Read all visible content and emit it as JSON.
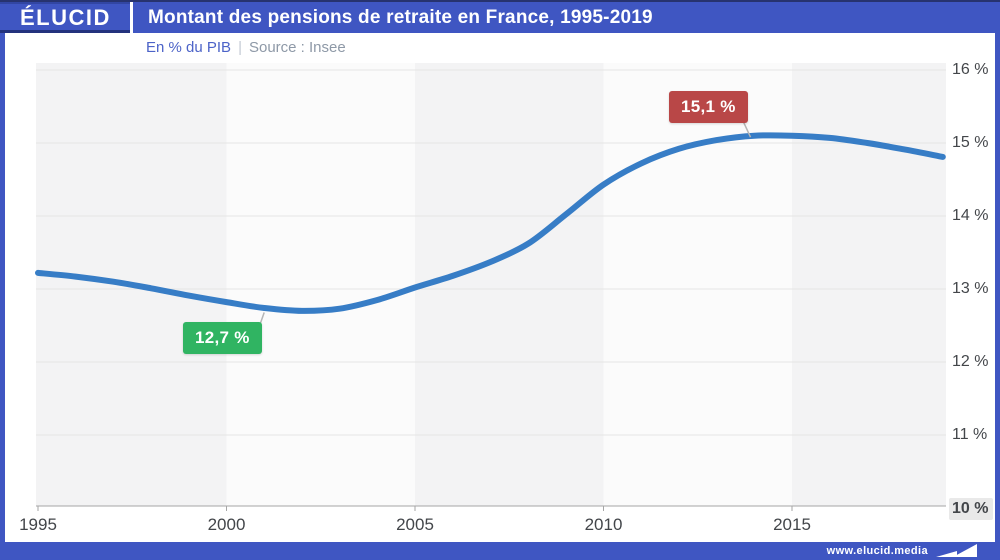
{
  "header": {
    "logo": "ÉLUCID",
    "title": "Montant des pensions de retraite en France, 1995-2019"
  },
  "subtitle": {
    "metric": "En % du PIB",
    "separator": "|",
    "source": "Source : Insee"
  },
  "footer": {
    "url": "www.elucid.media"
  },
  "colors": {
    "brand_blue": "#3f56c2",
    "line_blue": "#377dc6",
    "min_green": "#30b462",
    "max_red": "#b94747",
    "band_gray": "#f3f3f4",
    "band_light": "#fbfbfb",
    "grid": "#e5e5e5",
    "axis": "#a6a6a6",
    "connector": "#b5b5b5"
  },
  "chart_data": {
    "type": "line",
    "title": "Montant des pensions de retraite en France, 1995-2019",
    "ylabel": "En % du PIB",
    "source": "Insee",
    "x": [
      1995,
      1996,
      1997,
      1998,
      1999,
      2000,
      2001,
      2002,
      2003,
      2004,
      2005,
      2006,
      2007,
      2008,
      2009,
      2010,
      2011,
      2012,
      2013,
      2014,
      2015,
      2016,
      2017,
      2018,
      2019
    ],
    "values": [
      13.22,
      13.17,
      13.1,
      13.01,
      12.91,
      12.82,
      12.74,
      12.7,
      12.73,
      12.85,
      13.02,
      13.18,
      13.37,
      13.62,
      14.02,
      14.43,
      14.72,
      14.92,
      15.04,
      15.1,
      15.1,
      15.07,
      15.0,
      14.91,
      14.81
    ],
    "ylim": [
      10,
      16
    ],
    "yticks": [
      16,
      15,
      14,
      13,
      12,
      11,
      10
    ],
    "ytick_labels": [
      "16 %",
      "15 %",
      "14 %",
      "13 %",
      "12 %",
      "11 %",
      "10 %"
    ],
    "xticks": [
      1995,
      2000,
      2005,
      2010,
      2015
    ],
    "xtick_labels": [
      "1995",
      "2000",
      "2005",
      "2010",
      "2015"
    ],
    "grid": "horizontal",
    "legend": "none",
    "annotations": [
      {
        "kind": "min",
        "label": "12,7 %",
        "year": 2002,
        "value": 12.7,
        "color": "#30b462"
      },
      {
        "kind": "max",
        "label": "15,1 %",
        "year": 2014,
        "value": 15.1,
        "color": "#b94747"
      }
    ]
  }
}
